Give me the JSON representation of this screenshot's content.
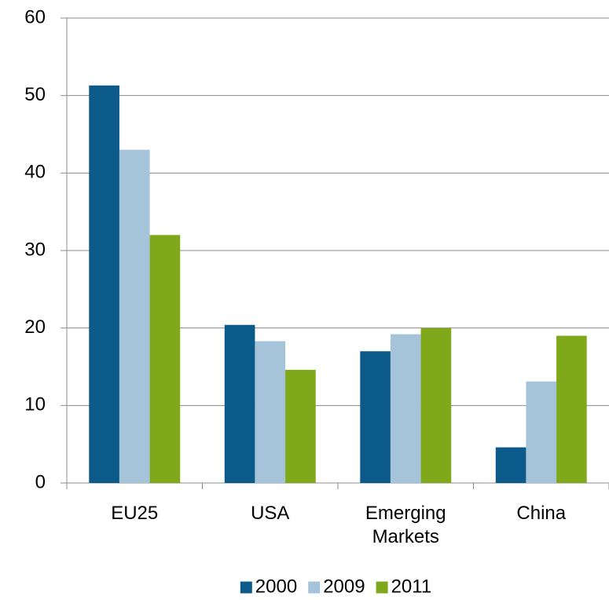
{
  "chart_data": {
    "type": "bar",
    "categories": [
      "EU25",
      "USA",
      "Emerging Markets",
      "China"
    ],
    "series": [
      {
        "name": "2000",
        "color": "#0b5a8a",
        "values": [
          51.3,
          20.4,
          17.0,
          4.6
        ]
      },
      {
        "name": "2009",
        "color": "#a5c4da",
        "values": [
          43.0,
          18.3,
          19.2,
          13.1
        ]
      },
      {
        "name": "2011",
        "color": "#7fa81a",
        "values": [
          32.0,
          14.6,
          20.0,
          19.0
        ]
      }
    ],
    "ylim": [
      0,
      60
    ],
    "yticks": [
      0,
      10,
      20,
      30,
      40,
      50,
      60
    ],
    "grid": true,
    "legend": "bottom"
  }
}
